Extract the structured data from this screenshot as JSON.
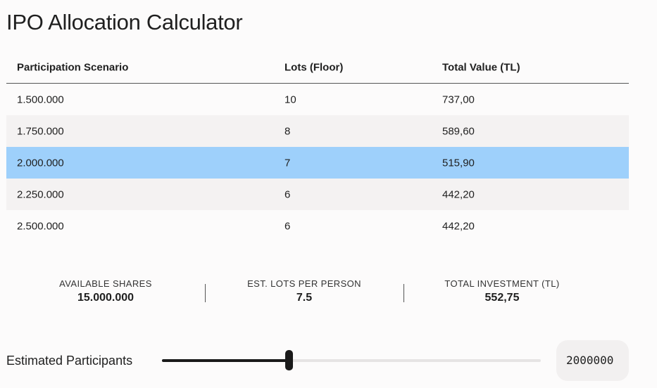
{
  "header": {
    "title": "IPO Allocation Calculator"
  },
  "table": {
    "columns": [
      "Participation Scenario",
      "Lots (Floor)",
      "Total Value (TL)"
    ],
    "rows": [
      [
        "1.500.000",
        "10",
        "737,00"
      ],
      [
        "1.750.000",
        "8",
        "589,60"
      ],
      [
        "2.000.000",
        "7",
        "515,90"
      ],
      [
        "2.250.000",
        "6",
        "442,20"
      ],
      [
        "2.500.000",
        "6",
        "442,20"
      ]
    ],
    "selected_row": 2
  },
  "stats": [
    {
      "label": "AVAILABLE SHARES",
      "value": "15.000.000"
    },
    {
      "label": "EST. LOTS PER PERSON",
      "value": "7.5"
    },
    {
      "label": "TOTAL INVESTMENT (TL)",
      "value": "552,75"
    }
  ],
  "slider": {
    "label": "Estimated Participants",
    "input_value": "2000000"
  }
}
